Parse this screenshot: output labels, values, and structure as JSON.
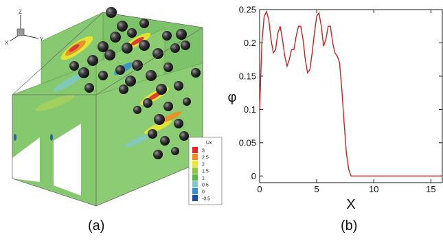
{
  "panel_a": {
    "caption": "(a)",
    "axes_triad": {
      "z": "Z",
      "x": "X",
      "y": "Y"
    },
    "legend": {
      "title": "Ux",
      "levels": [
        "3",
        "2.5",
        "2",
        "1.5",
        "1",
        "0.5",
        "0",
        "-0.5"
      ],
      "colors": [
        "#e8262a",
        "#f58a1f",
        "#f2e82b",
        "#8cc63f",
        "#58b84a",
        "#7ec9c8",
        "#2f8fd0",
        "#1c4fa0"
      ]
    }
  },
  "panel_b": {
    "caption": "(b)",
    "xlabel": "X",
    "ylabel": "φ"
  },
  "chart_data": {
    "type": "line",
    "xlabel": "X",
    "ylabel": "φ",
    "xlim": [
      0,
      16
    ],
    "ylim": [
      -0.01,
      0.25
    ],
    "xticks": [
      0,
      5,
      10,
      15
    ],
    "yticks": [
      0,
      0.05,
      0.1,
      0.15,
      0.2,
      0.25
    ],
    "ytick_labels": [
      "0",
      "0.05",
      "0.1",
      "0.15",
      "0.2",
      "0.25"
    ],
    "grid": false,
    "series": [
      {
        "color": "#cc1f1f",
        "x": [
          0,
          0.2,
          0.4,
          0.6,
          0.8,
          1.0,
          1.2,
          1.4,
          1.6,
          1.8,
          2.0,
          2.2,
          2.4,
          2.6,
          2.8,
          3.0,
          3.2,
          3.4,
          3.6,
          3.8,
          4.0,
          4.2,
          4.4,
          4.6,
          4.8,
          5.0,
          5.2,
          5.4,
          5.6,
          5.8,
          6.0,
          6.2,
          6.4,
          6.6,
          6.8,
          7.0,
          7.2,
          7.4,
          7.6,
          7.8,
          8.0,
          8.2,
          8.4,
          8.6,
          9.0,
          10,
          11,
          12,
          13,
          14,
          15,
          16
        ],
        "y": [
          0.1,
          0.2,
          0.24,
          0.247,
          0.235,
          0.205,
          0.185,
          0.19,
          0.215,
          0.225,
          0.205,
          0.18,
          0.165,
          0.175,
          0.19,
          0.19,
          0.21,
          0.225,
          0.225,
          0.205,
          0.175,
          0.155,
          0.16,
          0.185,
          0.215,
          0.24,
          0.245,
          0.225,
          0.195,
          0.205,
          0.225,
          0.225,
          0.2,
          0.185,
          0.18,
          0.17,
          0.13,
          0.08,
          0.035,
          0.01,
          0.0,
          0.0,
          0.0,
          0.0,
          0.0,
          0.0,
          0.0,
          0.0,
          0.0,
          0.0,
          0.0,
          0.0
        ]
      }
    ]
  }
}
